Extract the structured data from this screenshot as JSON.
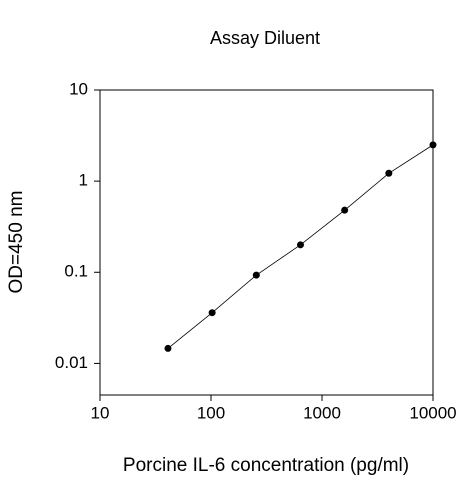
{
  "chart_data": {
    "type": "scatter",
    "title": "Assay Diluent",
    "x_label": "Porcine IL-6 concentration (pg/ml)",
    "y_label": "OD=450 nm",
    "x": [
      40.96,
      102.4,
      256,
      640,
      1600,
      4000,
      10000
    ],
    "values": [
      0.0146,
      0.036,
      0.093,
      0.2,
      0.48,
      1.22,
      2.5
    ],
    "color": "#000000",
    "line": true,
    "xscale": "log",
    "yscale": "log",
    "xlim": [
      10,
      10000
    ],
    "ylim": [
      0.0045,
      10
    ],
    "xticks": [
      10,
      100,
      1000,
      10000
    ],
    "yticks": [
      0.01,
      0.1,
      1,
      10
    ]
  }
}
